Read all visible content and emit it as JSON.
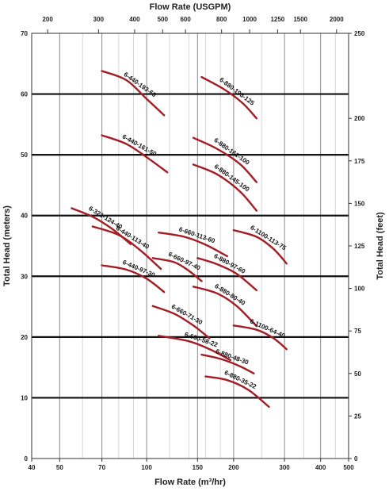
{
  "chart_data": {
    "type": "line",
    "title": "",
    "xlabel_bottom": "Flow Rate (m³/hr)",
    "xlabel_top": "Flow Rate (USGPM)",
    "ylabel_left": "Total Head (meters)",
    "ylabel_right": "Total Head (feet)",
    "x_scale": "log",
    "xlim": [
      40,
      500
    ],
    "ylim": [
      0,
      70
    ],
    "ylim_right": [
      0,
      250
    ],
    "x_ticks": [
      40,
      50,
      70,
      100,
      150,
      200,
      300,
      400,
      500
    ],
    "x_ticks_top": [
      200,
      300,
      400,
      500,
      600,
      800,
      1000,
      1250,
      1500,
      2000
    ],
    "y_ticks": [
      0,
      10,
      20,
      30,
      40,
      50,
      60,
      70
    ],
    "y_ticks_right": [
      0,
      25,
      50,
      75,
      100,
      125,
      150,
      175,
      200,
      250
    ],
    "curve_color": "#a41d25",
    "series": [
      {
        "name": "6-440-193-60",
        "points": [
          [
            70,
            63.8
          ],
          [
            85,
            62.3
          ],
          [
            100,
            59.2
          ],
          [
            115,
            56.5
          ]
        ]
      },
      {
        "name": "6-880-193-125",
        "points": [
          [
            155,
            62.8
          ],
          [
            185,
            60.8
          ],
          [
            215,
            58.5
          ],
          [
            240,
            56
          ]
        ]
      },
      {
        "name": "6-440-161-50",
        "points": [
          [
            70,
            53.2
          ],
          [
            85,
            51.8
          ],
          [
            100,
            49.6
          ],
          [
            118,
            47.1
          ]
        ]
      },
      {
        "name": "6-880-161-100",
        "points": [
          [
            145,
            52.8
          ],
          [
            175,
            51
          ],
          [
            210,
            48.5
          ],
          [
            240,
            45.5
          ]
        ]
      },
      {
        "name": "6-880-145-100",
        "points": [
          [
            145,
            48.4
          ],
          [
            175,
            46.8
          ],
          [
            210,
            44
          ],
          [
            240,
            40.8
          ]
        ]
      },
      {
        "name": "6-321-124-40",
        "points": [
          [
            55,
            41.2
          ],
          [
            65,
            39.8
          ],
          [
            76,
            37.8
          ],
          [
            88,
            35.3
          ]
        ]
      },
      {
        "name": "6-440-113-40",
        "points": [
          [
            65,
            38.2
          ],
          [
            80,
            36.8
          ],
          [
            95,
            34.3
          ],
          [
            112,
            31.2
          ]
        ]
      },
      {
        "name": "6-660-113-60",
        "points": [
          [
            110,
            37.2
          ],
          [
            135,
            36.5
          ],
          [
            160,
            35.2
          ],
          [
            190,
            33.3
          ]
        ]
      },
      {
        "name": "6-1100-113-75",
        "points": [
          [
            200,
            37.6
          ],
          [
            240,
            36.5
          ],
          [
            275,
            34.5
          ],
          [
            305,
            32.1
          ]
        ]
      },
      {
        "name": "6-440-97-30",
        "points": [
          [
            70,
            31.8
          ],
          [
            85,
            31.1
          ],
          [
            100,
            29.6
          ],
          [
            115,
            27.4
          ]
        ]
      },
      {
        "name": "6-660-97-40",
        "points": [
          [
            105,
            33
          ],
          [
            125,
            32.3
          ],
          [
            140,
            30.9
          ],
          [
            155,
            29.2
          ]
        ]
      },
      {
        "name": "6-880-97-60",
        "points": [
          [
            150,
            33
          ],
          [
            175,
            32
          ],
          [
            205,
            30.4
          ],
          [
            240,
            27.7
          ]
        ]
      },
      {
        "name": "6-880-80-40",
        "points": [
          [
            145,
            28.3
          ],
          [
            175,
            27.2
          ],
          [
            205,
            25.1
          ],
          [
            240,
            21.8
          ]
        ]
      },
      {
        "name": "6-660-71-30",
        "points": [
          [
            105,
            25.1
          ],
          [
            125,
            23.8
          ],
          [
            145,
            21.9
          ],
          [
            165,
            19.8
          ]
        ]
      },
      {
        "name": "6-1100-64-40",
        "points": [
          [
            200,
            21.9
          ],
          [
            240,
            21.2
          ],
          [
            275,
            19.8
          ],
          [
            305,
            18
          ]
        ]
      },
      {
        "name": "6-660-58-22",
        "points": [
          [
            110,
            20.2
          ],
          [
            140,
            19.3
          ],
          [
            165,
            18
          ],
          [
            195,
            16.2
          ]
        ]
      },
      {
        "name": "6-880-48-30",
        "points": [
          [
            155,
            17.1
          ],
          [
            180,
            16.4
          ],
          [
            210,
            15.2
          ],
          [
            235,
            14
          ]
        ]
      },
      {
        "name": "6-880-35-22",
        "points": [
          [
            160,
            13.5
          ],
          [
            190,
            12.9
          ],
          [
            225,
            11.3
          ],
          [
            265,
            8.5
          ]
        ]
      }
    ]
  }
}
